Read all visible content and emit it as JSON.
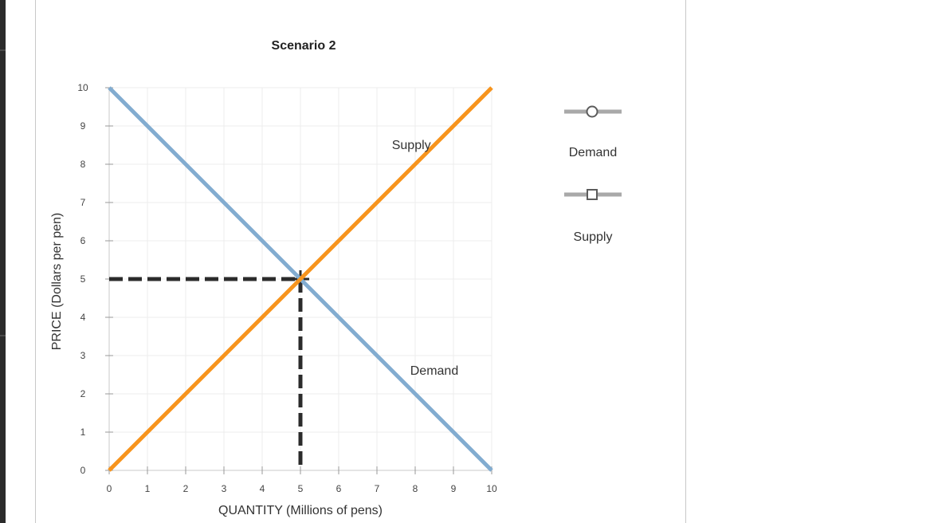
{
  "chart_data": {
    "type": "line",
    "title": "Scenario 2",
    "xlabel": "QUANTITY (Millions of pens)",
    "ylabel": "PRICE (Dollars per pen)",
    "xlim": [
      0,
      10
    ],
    "ylim": [
      0,
      10
    ],
    "x_ticks": [
      "0",
      "1",
      "2",
      "3",
      "4",
      "5",
      "6",
      "7",
      "8",
      "9",
      "10"
    ],
    "y_ticks": [
      "0",
      "1",
      "2",
      "3",
      "4",
      "5",
      "6",
      "7",
      "8",
      "9",
      "10"
    ],
    "grid": true,
    "series": [
      {
        "name": "Demand",
        "color": "#82acd0",
        "marker": "circle",
        "points": [
          [
            0,
            10
          ],
          [
            10,
            0
          ]
        ]
      },
      {
        "name": "Supply",
        "color": "#f7941d",
        "marker": "square",
        "points": [
          [
            0,
            0
          ],
          [
            10,
            10
          ]
        ]
      }
    ],
    "annotations": [
      {
        "text": "Supply",
        "x": 7.9,
        "y": 8.4
      },
      {
        "text": "Demand",
        "x": 8.5,
        "y": 2.5
      }
    ],
    "equilibrium": {
      "x": 5,
      "y": 5,
      "guide_color": "#2b2b2b"
    },
    "legend": {
      "position": "right",
      "items": [
        {
          "label": "Demand",
          "marker": "circle"
        },
        {
          "label": "Supply",
          "marker": "square"
        }
      ]
    }
  }
}
